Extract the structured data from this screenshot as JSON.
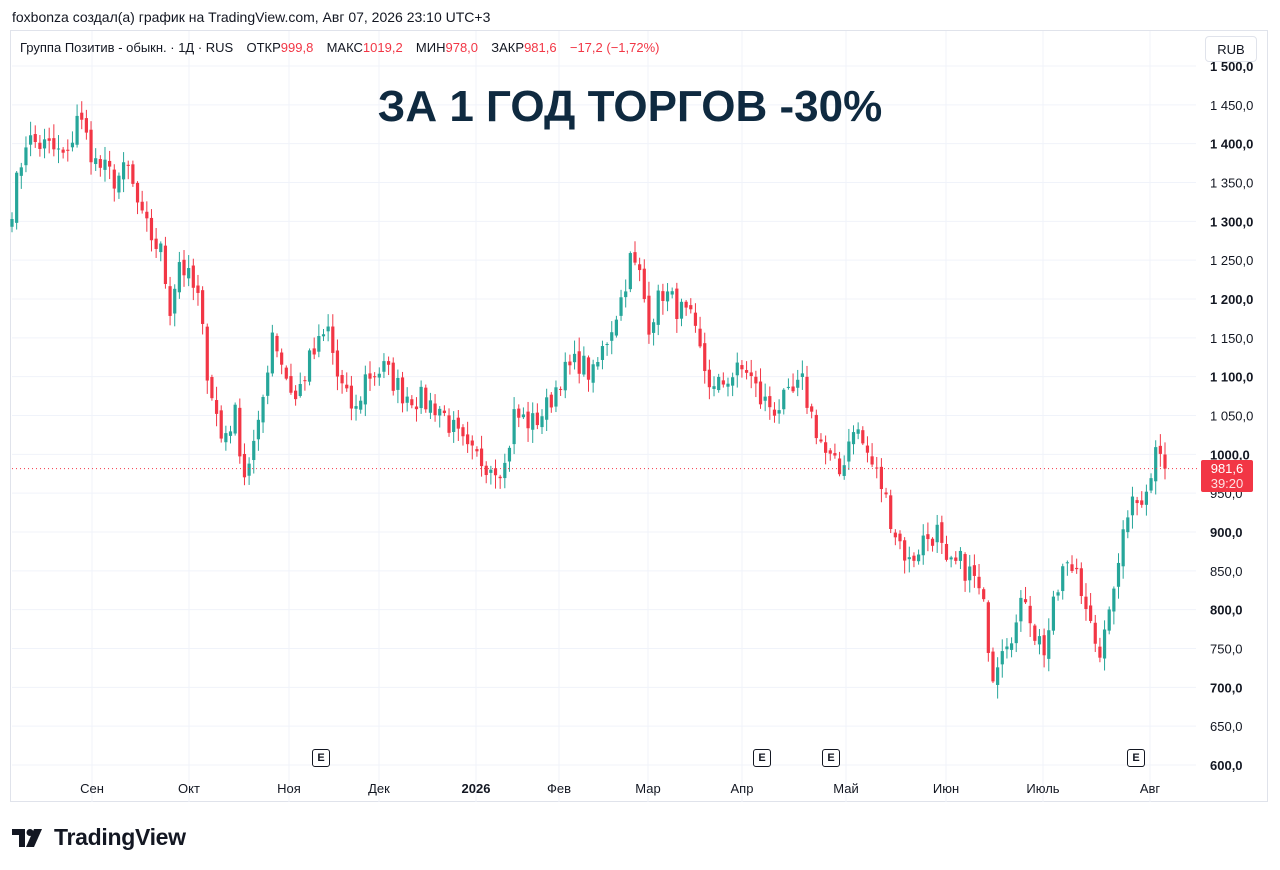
{
  "caption": "foxbonza создал(а) график на TradingView.com, Авг 07, 2026 23:10 UTC+3",
  "legend": {
    "symbol": "Группа Позитив - обыкн. · 1Д · RUS",
    "open_label": "ОТКР",
    "open_value": "999,8",
    "high_label": "МАКС",
    "high_value": "1019,2",
    "low_label": "МИН",
    "low_value": "978,0",
    "close_label": "ЗАКР",
    "close_value": "981,6",
    "change": "−17,2 (−1,72%)"
  },
  "currency_button": "RUB",
  "headline": "ЗА 1 ГОД ТОРГОВ -30%",
  "price_tag": {
    "price": "981,6",
    "countdown": "39:20"
  },
  "earnings_marker": "E",
  "footer": {
    "brand": "TradingView",
    "logo_icon": "tradingview-logo-icon"
  },
  "colors": {
    "up": "#26a69a",
    "down": "#f23645",
    "grid": "#f0f3fa",
    "headline": "#0f2a40"
  },
  "chart_data": {
    "type": "candlestick",
    "title": "ЗА 1 ГОД ТОРГОВ -30%",
    "ylim": [
      600,
      1500
    ],
    "y_ticks": [
      "600,0",
      "650,0",
      "700,0",
      "750,0",
      "800,0",
      "850,0",
      "900,0",
      "950,0",
      "1000,0",
      "1 050,0",
      "1 100,0",
      "1 150,0",
      "1 200,0",
      "1 250,0",
      "1 300,0",
      "1 350,0",
      "1 400,0",
      "1 450,0",
      "1 500,0"
    ],
    "x_ticks": [
      "Сен",
      "Окт",
      "Ноя",
      "Дек",
      "2026",
      "Фев",
      "Мар",
      "Апр",
      "Май",
      "Июн",
      "Июль",
      "Авг"
    ],
    "last_price": 981.6,
    "close_path": [
      {
        "t": 0,
        "v": 1320
      },
      {
        "t": 3,
        "v": 1405
      },
      {
        "t": 8,
        "v": 1395
      },
      {
        "t": 12,
        "v": 1380
      },
      {
        "t": 14,
        "v": 1440
      },
      {
        "t": 18,
        "v": 1375
      },
      {
        "t": 22,
        "v": 1355
      },
      {
        "t": 25,
        "v": 1365
      },
      {
        "t": 28,
        "v": 1300
      },
      {
        "t": 32,
        "v": 1260
      },
      {
        "t": 34,
        "v": 1190
      },
      {
        "t": 36,
        "v": 1250
      },
      {
        "t": 40,
        "v": 1200
      },
      {
        "t": 42,
        "v": 1110
      },
      {
        "t": 45,
        "v": 1020
      },
      {
        "t": 48,
        "v": 1050
      },
      {
        "t": 50,
        "v": 975
      },
      {
        "t": 53,
        "v": 1030
      },
      {
        "t": 56,
        "v": 1160
      },
      {
        "t": 59,
        "v": 1100
      },
      {
        "t": 61,
        "v": 1070
      },
      {
        "t": 64,
        "v": 1120
      },
      {
        "t": 68,
        "v": 1160
      },
      {
        "t": 70,
        "v": 1100
      },
      {
        "t": 72,
        "v": 1070
      },
      {
        "t": 74,
        "v": 1055
      },
      {
        "t": 76,
        "v": 1100
      },
      {
        "t": 80,
        "v": 1110
      },
      {
        "t": 84,
        "v": 1080
      },
      {
        "t": 88,
        "v": 1070
      },
      {
        "t": 92,
        "v": 1060
      },
      {
        "t": 95,
        "v": 1030
      },
      {
        "t": 98,
        "v": 1000
      },
      {
        "t": 102,
        "v": 990
      },
      {
        "t": 106,
        "v": 985
      },
      {
        "t": 108,
        "v": 1050
      },
      {
        "t": 112,
        "v": 1040
      },
      {
        "t": 115,
        "v": 1060
      },
      {
        "t": 118,
        "v": 1100
      },
      {
        "t": 122,
        "v": 1120
      },
      {
        "t": 125,
        "v": 1100
      },
      {
        "t": 128,
        "v": 1150
      },
      {
        "t": 131,
        "v": 1200
      },
      {
        "t": 133,
        "v": 1250
      },
      {
        "t": 135,
        "v": 1230
      },
      {
        "t": 137,
        "v": 1170
      },
      {
        "t": 140,
        "v": 1210
      },
      {
        "t": 143,
        "v": 1190
      },
      {
        "t": 146,
        "v": 1170
      },
      {
        "t": 149,
        "v": 1110
      },
      {
        "t": 151,
        "v": 1080
      },
      {
        "t": 154,
        "v": 1100
      },
      {
        "t": 158,
        "v": 1110
      },
      {
        "t": 161,
        "v": 1070
      },
      {
        "t": 164,
        "v": 1060
      },
      {
        "t": 167,
        "v": 1070
      },
      {
        "t": 170,
        "v": 1090
      },
      {
        "t": 172,
        "v": 1050
      },
      {
        "t": 175,
        "v": 1000
      },
      {
        "t": 178,
        "v": 975
      },
      {
        "t": 181,
        "v": 1040
      },
      {
        "t": 184,
        "v": 1000
      },
      {
        "t": 187,
        "v": 960
      },
      {
        "t": 190,
        "v": 900
      },
      {
        "t": 193,
        "v": 860
      },
      {
        "t": 196,
        "v": 890
      },
      {
        "t": 199,
        "v": 900
      },
      {
        "t": 201,
        "v": 850
      },
      {
        "t": 204,
        "v": 860
      },
      {
        "t": 207,
        "v": 840
      },
      {
        "t": 209,
        "v": 800
      },
      {
        "t": 211,
        "v": 720
      },
      {
        "t": 213,
        "v": 760
      },
      {
        "t": 216,
        "v": 780
      },
      {
        "t": 218,
        "v": 820
      },
      {
        "t": 220,
        "v": 770
      },
      {
        "t": 222,
        "v": 750
      },
      {
        "t": 224,
        "v": 800
      },
      {
        "t": 226,
        "v": 850
      },
      {
        "t": 229,
        "v": 855
      },
      {
        "t": 231,
        "v": 810
      },
      {
        "t": 233,
        "v": 740
      },
      {
        "t": 235,
        "v": 760
      },
      {
        "t": 237,
        "v": 840
      },
      {
        "t": 239,
        "v": 900
      },
      {
        "t": 241,
        "v": 960
      },
      {
        "t": 243,
        "v": 930
      },
      {
        "t": 245,
        "v": 970
      },
      {
        "t": 247,
        "v": 1015
      },
      {
        "t": 248,
        "v": 981.6
      }
    ]
  }
}
